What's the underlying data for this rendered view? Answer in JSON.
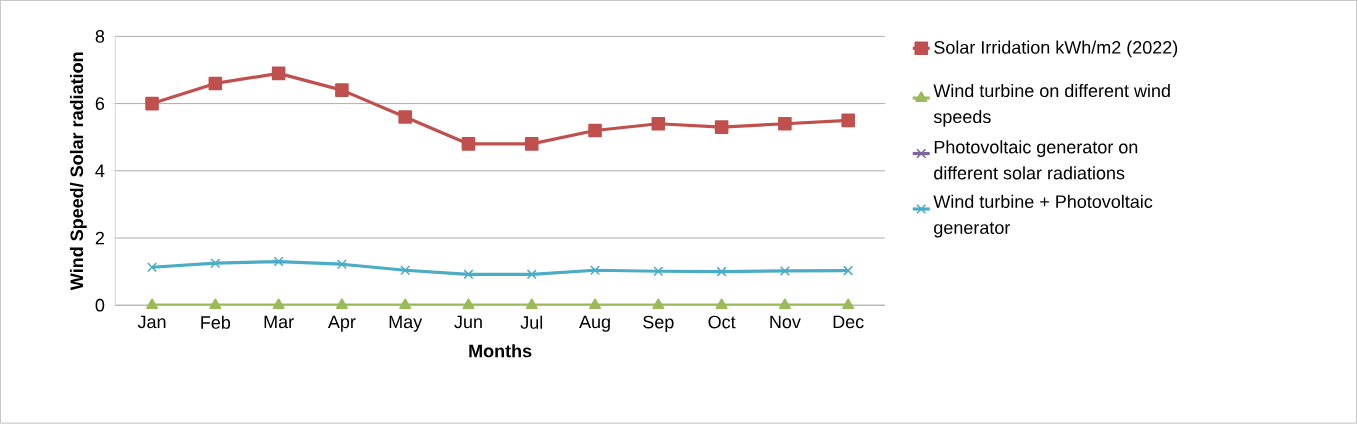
{
  "chart_data": {
    "type": "line",
    "xlabel": "Months",
    "ylabel": "Wind Speed/ Solar radiation",
    "categories": [
      "Jan",
      "Feb",
      "Mar",
      "Apr",
      "May",
      "Jun",
      "Jul",
      "Aug",
      "Sep",
      "Oct",
      "Nov",
      "Dec"
    ],
    "series": [
      {
        "name": "Solar Irridation kWh/m2 (2022)",
        "color": "#c0504d",
        "marker": "square",
        "values": [
          6.0,
          6.6,
          6.9,
          6.4,
          5.6,
          4.8,
          4.8,
          5.2,
          5.4,
          5.3,
          5.4,
          5.5
        ]
      },
      {
        "name": "Wind turbine on different wind speeds",
        "color": "#9bbb59",
        "marker": "triangle",
        "values": [
          0,
          0,
          0,
          0,
          0,
          0,
          0,
          0,
          0,
          0,
          0,
          0
        ]
      },
      {
        "name": "Photovoltaic generator on different solar radiations",
        "color": "#8064a2",
        "marker": "cross",
        "values": [
          null,
          null,
          null,
          null,
          null,
          null,
          null,
          null,
          null,
          null,
          null,
          null
        ]
      },
      {
        "name": "Wind turbine + Photovoltaic generator",
        "color": "#4bacc6",
        "marker": "cross",
        "values": [
          1.13,
          1.25,
          1.3,
          1.22,
          1.04,
          0.92,
          0.92,
          1.04,
          1.01,
          1.0,
          1.02,
          1.03
        ]
      }
    ],
    "ylim": [
      0,
      8
    ],
    "yticks": [
      0,
      2,
      4,
      6,
      8
    ],
    "grid": "y",
    "legend": "right"
  }
}
